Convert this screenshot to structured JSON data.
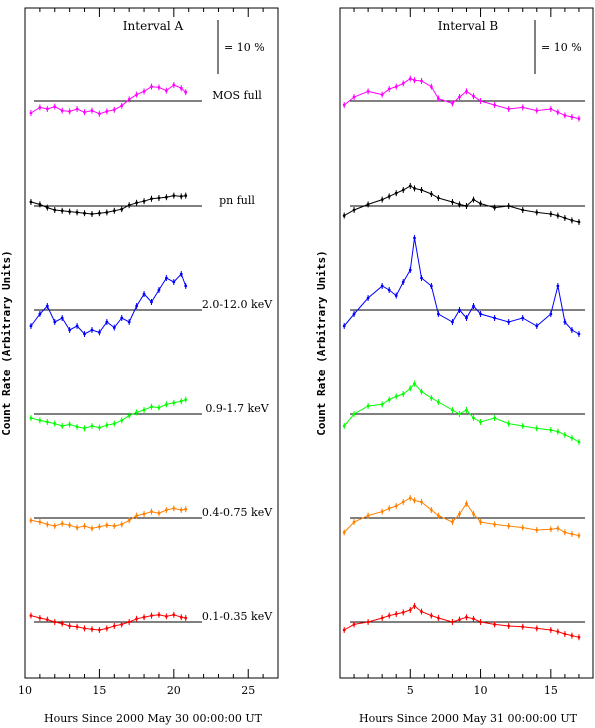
{
  "chart_data": [
    {
      "type": "line",
      "title": "Interval A",
      "xlabel": "Hours Since 2000 May 30 00:00:00 UT",
      "ylabel": "Count Rate (Arbitrary Units)",
      "xlim": [
        10,
        27
      ],
      "xticks": [
        "10",
        "15",
        "20",
        "25"
      ],
      "scale_bar_label": "= 10 %",
      "grid": false,
      "x": [
        10.4,
        11.0,
        11.5,
        12.0,
        12.5,
        13.0,
        13.5,
        14.0,
        14.5,
        15.0,
        15.5,
        16.0,
        16.5,
        17.0,
        17.5,
        18.0,
        18.5,
        19.0,
        19.5,
        20.0,
        20.5,
        20.8
      ],
      "series": [
        {
          "name": "MOS full",
          "color": "#ff00ff",
          "values": [
            -1.5,
            -0.8,
            -1.0,
            -0.7,
            -1.2,
            -1.3,
            -1.0,
            -1.4,
            -1.2,
            -1.6,
            -1.3,
            -1.1,
            -0.6,
            0.2,
            0.8,
            1.2,
            1.8,
            1.7,
            1.3,
            2.0,
            1.6,
            1.1
          ]
        },
        {
          "name": "pn full",
          "color": "#000000",
          "values": [
            0.5,
            0.2,
            -0.2,
            -0.5,
            -0.6,
            -0.7,
            -0.8,
            -0.9,
            -1.0,
            -0.9,
            -0.8,
            -0.6,
            -0.4,
            0.1,
            0.4,
            0.6,
            0.9,
            1.0,
            1.1,
            1.3,
            1.2,
            1.3
          ]
        },
        {
          "name": "2.0-12.0 keV",
          "color": "#0000ff",
          "values": [
            -2.0,
            -0.5,
            0.5,
            -1.5,
            -1.0,
            -2.5,
            -2.0,
            -3.0,
            -2.5,
            -2.8,
            -1.5,
            -2.2,
            -1.0,
            -1.5,
            0.5,
            2.0,
            1.0,
            2.5,
            4.0,
            3.5,
            4.5,
            3.0
          ]
        },
        {
          "name": "0.9-1.7 keV",
          "color": "#00ff00",
          "values": [
            -0.5,
            -0.8,
            -1.0,
            -1.2,
            -1.5,
            -1.3,
            -1.6,
            -1.8,
            -1.5,
            -1.7,
            -1.4,
            -1.2,
            -0.8,
            -0.2,
            0.2,
            0.5,
            0.9,
            0.8,
            1.2,
            1.4,
            1.6,
            1.8
          ]
        },
        {
          "name": "0.4-0.75 keV",
          "color": "#ff8000",
          "values": [
            -0.3,
            -0.5,
            -0.8,
            -1.0,
            -0.7,
            -0.9,
            -1.2,
            -1.0,
            -1.3,
            -1.1,
            -0.9,
            -1.0,
            -0.8,
            -0.3,
            0.3,
            0.5,
            0.8,
            0.6,
            1.0,
            1.2,
            1.0,
            1.1
          ]
        },
        {
          "name": "0.1-0.35 keV",
          "color": "#ff0000",
          "values": [
            0.8,
            0.5,
            0.3,
            0.0,
            -0.2,
            -0.5,
            -0.6,
            -0.8,
            -0.9,
            -1.0,
            -0.8,
            -0.5,
            -0.3,
            0.0,
            0.4,
            0.6,
            0.8,
            0.9,
            0.7,
            0.9,
            0.6,
            0.5
          ]
        }
      ]
    },
    {
      "type": "line",
      "title": "Interval B",
      "xlabel": "Hours Since 2000 May 31 00:00:00 UT",
      "ylabel": "Count Rate (Arbitrary Units)",
      "xlim": [
        0,
        18
      ],
      "xticks": [
        "5",
        "10",
        "15"
      ],
      "scale_bar_label": "= 10 %",
      "grid": false,
      "x": [
        0.3,
        1.0,
        2.0,
        3.0,
        3.5,
        4.0,
        4.5,
        5.0,
        5.3,
        5.8,
        6.5,
        7.0,
        8.0,
        8.5,
        9.0,
        9.5,
        10.0,
        11.0,
        12.0,
        13.0,
        14.0,
        15.0,
        15.5,
        16.0,
        16.5,
        17.0
      ],
      "series": [
        {
          "name": "MOS full",
          "color": "#ff00ff",
          "values": [
            -0.5,
            0.5,
            1.2,
            0.8,
            1.5,
            1.8,
            2.2,
            2.8,
            2.6,
            2.5,
            1.8,
            0.3,
            -0.3,
            0.5,
            1.2,
            0.6,
            0.0,
            -0.5,
            -1.0,
            -0.8,
            -1.2,
            -1.0,
            -1.4,
            -1.8,
            -2.0,
            -2.2
          ]
        },
        {
          "name": "pn full",
          "color": "#000000",
          "values": [
            -1.2,
            -0.5,
            0.2,
            0.8,
            1.2,
            1.6,
            2.0,
            2.5,
            2.2,
            2.0,
            1.5,
            1.0,
            0.5,
            0.2,
            0.0,
            0.8,
            0.3,
            -0.2,
            0.0,
            -0.5,
            -0.8,
            -1.0,
            -1.2,
            -1.5,
            -1.8,
            -2.0
          ]
        },
        {
          "name": "2.0-12.0 keV",
          "color": "#0000ff",
          "values": [
            -2.0,
            -0.5,
            1.5,
            3.0,
            2.5,
            1.8,
            3.5,
            5.0,
            9.0,
            4.0,
            3.0,
            -0.5,
            -1.5,
            0.0,
            -1.0,
            0.5,
            -0.5,
            -1.0,
            -1.5,
            -1.0,
            -2.0,
            -0.5,
            3.0,
            -1.5,
            -2.5,
            -3.0
          ]
        },
        {
          "name": "0.9-1.7 keV",
          "color": "#00ff00",
          "values": [
            -1.5,
            0.0,
            1.0,
            1.2,
            1.8,
            2.2,
            2.5,
            3.2,
            3.8,
            2.8,
            2.0,
            1.5,
            0.5,
            0.0,
            0.5,
            -0.5,
            -1.0,
            -0.5,
            -1.2,
            -1.5,
            -1.8,
            -2.0,
            -2.2,
            -2.6,
            -3.0,
            -3.5
          ]
        },
        {
          "name": "0.4-0.75 keV",
          "color": "#ff8000",
          "values": [
            -1.8,
            -0.5,
            0.3,
            0.8,
            1.2,
            1.5,
            2.0,
            2.5,
            2.2,
            2.0,
            1.0,
            0.3,
            -0.5,
            0.5,
            1.8,
            0.5,
            -0.5,
            -0.8,
            -1.0,
            -1.2,
            -1.5,
            -1.4,
            -1.3,
            -1.8,
            -2.0,
            -2.2
          ]
        },
        {
          "name": "0.1-0.35 keV",
          "color": "#ff0000",
          "values": [
            -1.0,
            -0.3,
            0.0,
            0.5,
            0.8,
            1.0,
            1.2,
            1.5,
            2.0,
            1.3,
            0.8,
            0.5,
            0.0,
            0.3,
            0.6,
            0.4,
            0.0,
            -0.3,
            -0.5,
            -0.6,
            -0.8,
            -1.0,
            -1.2,
            -1.5,
            -1.7,
            -1.9
          ]
        }
      ]
    }
  ]
}
